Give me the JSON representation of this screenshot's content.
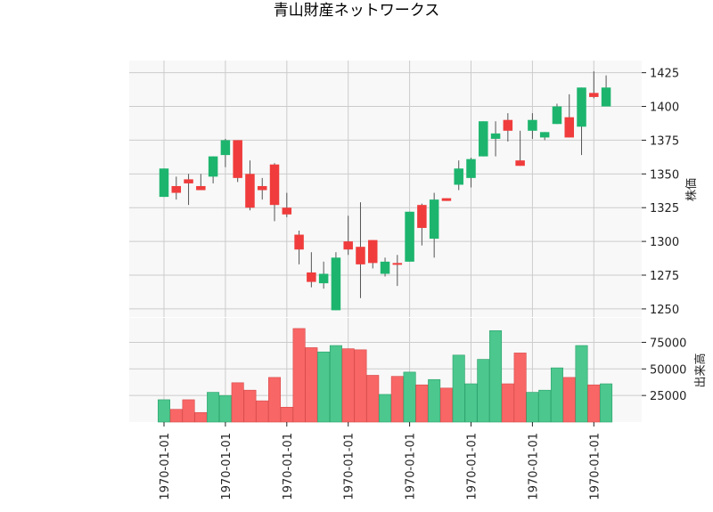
{
  "chart_data": {
    "type": "candlestick",
    "title": "青山財産ネットワークス",
    "price_axis": {
      "label": "株価",
      "ticks": [
        1250,
        1275,
        1300,
        1325,
        1350,
        1375,
        1400,
        1425
      ],
      "ylim": [
        1244,
        1434
      ]
    },
    "volume_axis": {
      "label": "出来高",
      "ticks": [
        25000,
        50000,
        75000
      ],
      "ylim": [
        0,
        98000
      ]
    },
    "x_tick_labels": [
      "1970-01-01",
      "1970-01-01",
      "1970-01-01",
      "1970-01-01",
      "1970-01-01",
      "1970-01-01",
      "1970-01-01",
      "1970-01-01"
    ],
    "x_tick_positions": [
      0,
      5,
      10,
      15,
      20,
      25,
      30,
      35
    ],
    "colors": {
      "up": "#1db56e",
      "down": "#f03c3c",
      "vol_up": "#4cc78e",
      "vol_down": "#f86666",
      "grid": "#cccccc",
      "bg": "#f8f8f8"
    },
    "grid": true,
    "candles": [
      {
        "o": 1333,
        "h": 1354,
        "l": 1333,
        "c": 1354,
        "v": 21000
      },
      {
        "o": 1341,
        "h": 1348,
        "l": 1331,
        "c": 1336,
        "v": 12000
      },
      {
        "o": 1346,
        "h": 1350,
        "l": 1327,
        "c": 1343,
        "v": 21000
      },
      {
        "o": 1341,
        "h": 1350,
        "l": 1338,
        "c": 1338,
        "v": 9000
      },
      {
        "o": 1348,
        "h": 1363,
        "l": 1343,
        "c": 1363,
        "v": 28000
      },
      {
        "o": 1364,
        "h": 1376,
        "l": 1355,
        "c": 1375,
        "v": 25000
      },
      {
        "o": 1375,
        "h": 1375,
        "l": 1344,
        "c": 1347,
        "v": 37000
      },
      {
        "o": 1350,
        "h": 1360,
        "l": 1323,
        "c": 1325,
        "v": 30000
      },
      {
        "o": 1341,
        "h": 1347,
        "l": 1331,
        "c": 1338,
        "v": 20000
      },
      {
        "o": 1357,
        "h": 1358,
        "l": 1315,
        "c": 1327,
        "v": 42000
      },
      {
        "o": 1325,
        "h": 1336,
        "l": 1318,
        "c": 1320,
        "v": 14000
      },
      {
        "o": 1305,
        "h": 1308,
        "l": 1283,
        "c": 1294,
        "v": 88000
      },
      {
        "o": 1277,
        "h": 1292,
        "l": 1266,
        "c": 1270,
        "v": 70000
      },
      {
        "o": 1269,
        "h": 1285,
        "l": 1265,
        "c": 1276,
        "v": 66000
      },
      {
        "o": 1249,
        "h": 1292,
        "l": 1249,
        "c": 1288,
        "v": 72000
      },
      {
        "o": 1300,
        "h": 1319,
        "l": 1290,
        "c": 1294,
        "v": 69000
      },
      {
        "o": 1296,
        "h": 1329,
        "l": 1258,
        "c": 1283,
        "v": 68000
      },
      {
        "o": 1301,
        "h": 1301,
        "l": 1280,
        "c": 1284,
        "v": 44000
      },
      {
        "o": 1276,
        "h": 1288,
        "l": 1274,
        "c": 1285,
        "v": 26000
      },
      {
        "o": 1284,
        "h": 1290,
        "l": 1267,
        "c": 1283,
        "v": 43000
      },
      {
        "o": 1285,
        "h": 1322,
        "l": 1285,
        "c": 1322,
        "v": 47000
      },
      {
        "o": 1327,
        "h": 1328,
        "l": 1297,
        "c": 1310,
        "v": 35000
      },
      {
        "o": 1302,
        "h": 1336,
        "l": 1288,
        "c": 1331,
        "v": 40000
      },
      {
        "o": 1332,
        "h": 1332,
        "l": 1330,
        "c": 1330,
        "v": 32000
      },
      {
        "o": 1342,
        "h": 1360,
        "l": 1338,
        "c": 1354,
        "v": 63000
      },
      {
        "o": 1347,
        "h": 1362,
        "l": 1340,
        "c": 1361,
        "v": 36000
      },
      {
        "o": 1363,
        "h": 1389,
        "l": 1363,
        "c": 1389,
        "v": 59000
      },
      {
        "o": 1376,
        "h": 1389,
        "l": 1363,
        "c": 1380,
        "v": 86000
      },
      {
        "o": 1390,
        "h": 1395,
        "l": 1374,
        "c": 1382,
        "v": 36000
      },
      {
        "o": 1360,
        "h": 1382,
        "l": 1356,
        "c": 1356,
        "v": 65000
      },
      {
        "o": 1382,
        "h": 1395,
        "l": 1376,
        "c": 1390,
        "v": 28000
      },
      {
        "o": 1377,
        "h": 1381,
        "l": 1375,
        "c": 1381,
        "v": 30000
      },
      {
        "o": 1387,
        "h": 1402,
        "l": 1387,
        "c": 1400,
        "v": 51000
      },
      {
        "o": 1392,
        "h": 1409,
        "l": 1377,
        "c": 1377,
        "v": 42000
      },
      {
        "o": 1385,
        "h": 1414,
        "l": 1364,
        "c": 1414,
        "v": 72000
      },
      {
        "o": 1410,
        "h": 1426,
        "l": 1406,
        "c": 1407,
        "v": 35000
      },
      {
        "o": 1400,
        "h": 1423,
        "l": 1400,
        "c": 1414,
        "v": 36000
      }
    ]
  }
}
